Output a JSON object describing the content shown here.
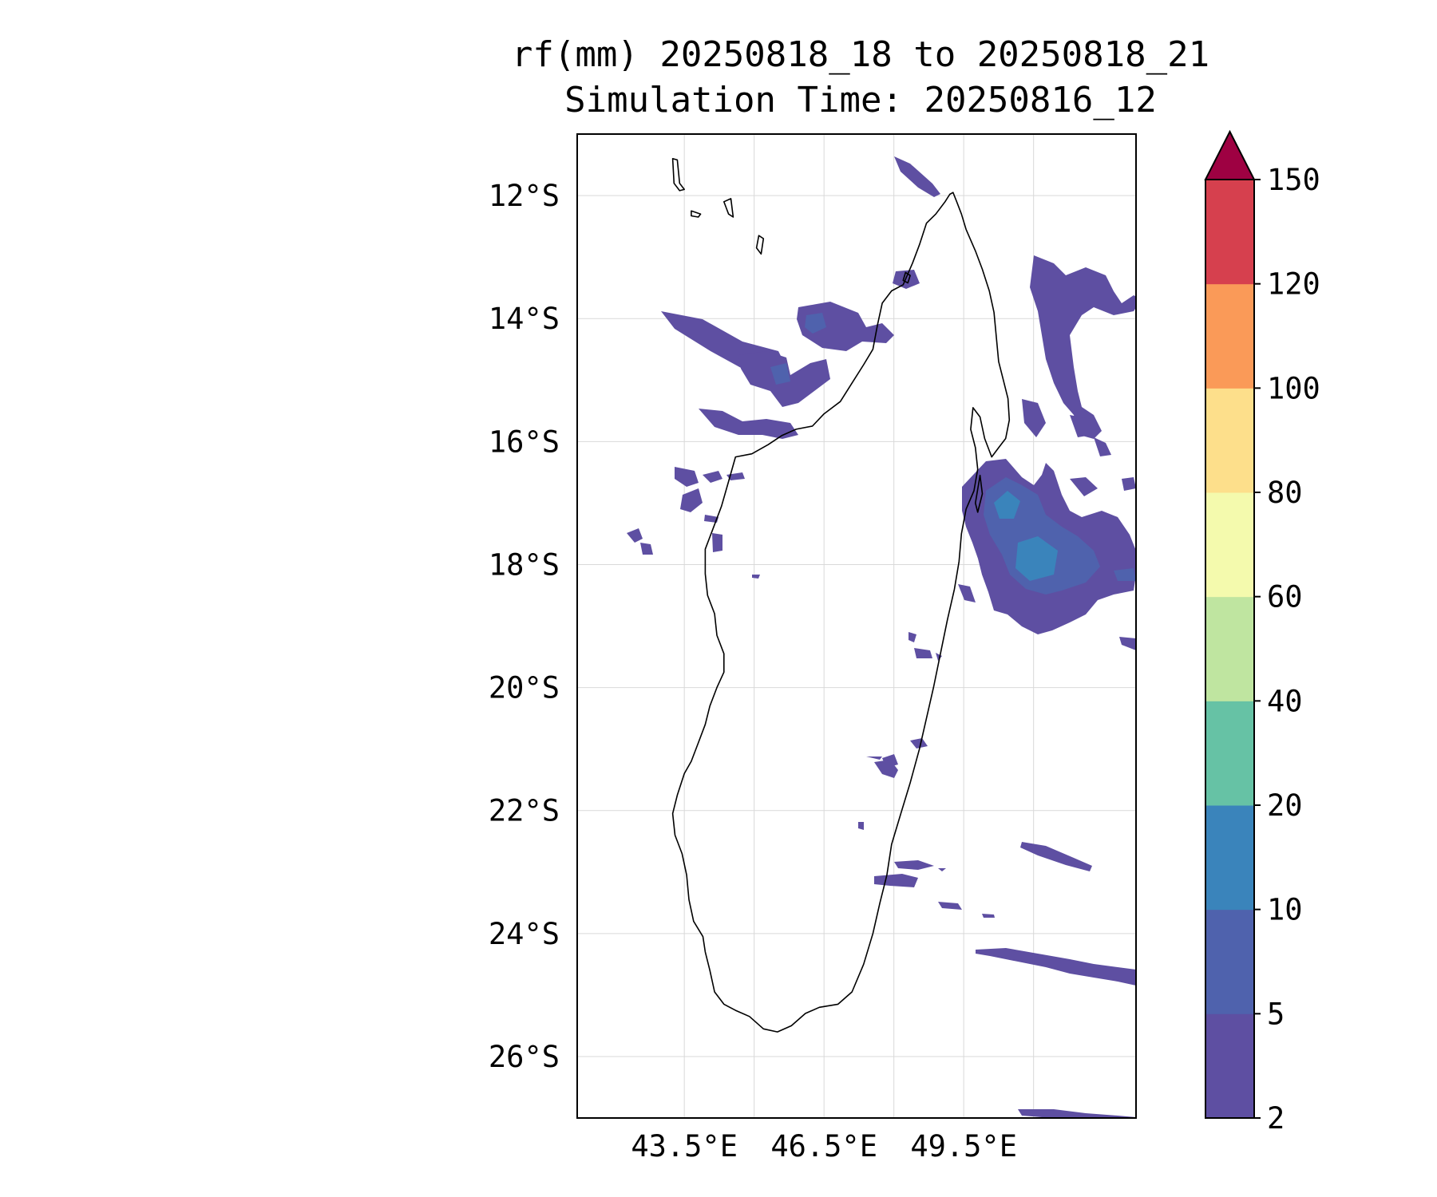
{
  "title": {
    "line1": "rf(mm) 20250818_18 to 20250818_21",
    "line2": "Simulation Time: 20250816_12"
  },
  "map": {
    "lon_range": [
      41.2,
      53.2
    ],
    "lat_range": [
      -27.0,
      -11.0
    ],
    "lon_ticks": [
      {
        "value": 43.5,
        "label": "43.5°E"
      },
      {
        "value": 46.5,
        "label": "46.5°E"
      },
      {
        "value": 49.5,
        "label": "49.5°E"
      }
    ],
    "lat_ticks": [
      {
        "value": -12,
        "label": "12°S"
      },
      {
        "value": -14,
        "label": "14°S"
      },
      {
        "value": -16,
        "label": "16°S"
      },
      {
        "value": -18,
        "label": "18°S"
      },
      {
        "value": -20,
        "label": "20°S"
      },
      {
        "value": -22,
        "label": "22°S"
      },
      {
        "value": -24,
        "label": "24°S"
      },
      {
        "value": -26,
        "label": "26°S"
      }
    ],
    "gridlines_lon": [
      43.5,
      45.0,
      46.5,
      48.0,
      49.5,
      51.0
    ],
    "grid": true,
    "coastline_color": "#000000"
  },
  "colorbar": {
    "levels": [
      {
        "value": 2,
        "label": "2",
        "color": "#5e4fa2"
      },
      {
        "value": 5,
        "label": "5",
        "color": "#4f62ad"
      },
      {
        "value": 10,
        "label": "10",
        "color": "#3a84bb"
      },
      {
        "value": 20,
        "label": "20",
        "color": "#66c2a5"
      },
      {
        "value": 40,
        "label": "40",
        "color": "#bfe5a0"
      },
      {
        "value": 60,
        "label": "60",
        "color": "#f4faad"
      },
      {
        "value": 80,
        "label": "80",
        "color": "#fddf8b"
      },
      {
        "value": 100,
        "label": "100",
        "color": "#fa9a58"
      },
      {
        "value": 120,
        "label": "120",
        "color": "#d6404e"
      },
      {
        "value": 150,
        "label": "150",
        "color": ""
      }
    ],
    "extend_color": "#9e0142",
    "extend": "max"
  }
}
